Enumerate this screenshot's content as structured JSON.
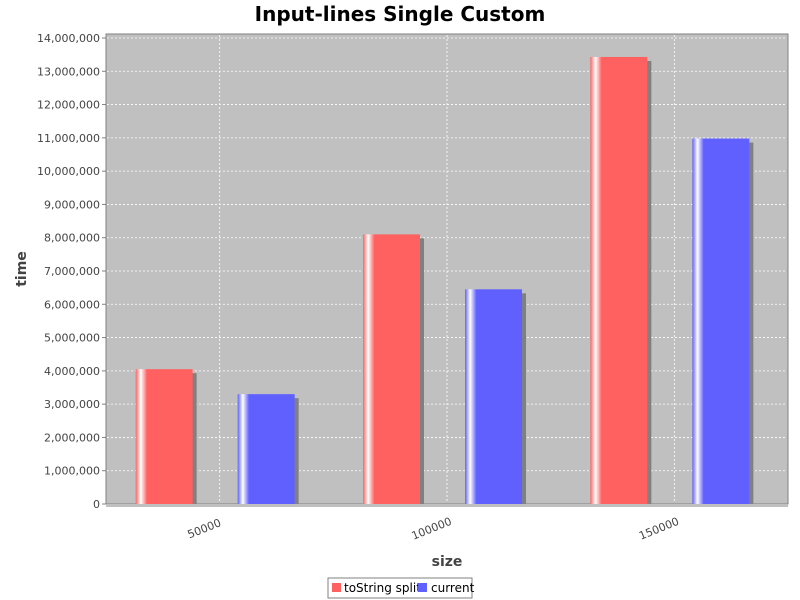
{
  "chart_data": {
    "type": "bar",
    "title": "Input-lines Single Custom",
    "xlabel": "size",
    "ylabel": "time",
    "categories": [
      "50000",
      "100000",
      "150000"
    ],
    "series": [
      {
        "name": "toString split",
        "color": "#ff6060",
        "values": [
          4050000,
          8100000,
          13430000
        ]
      },
      {
        "name": "current",
        "color": "#6060ff",
        "values": [
          3300000,
          6450000,
          10980000
        ]
      }
    ],
    "ylim": [
      0,
      14000000
    ],
    "yticks": [
      0,
      1000000,
      2000000,
      3000000,
      4000000,
      5000000,
      6000000,
      7000000,
      8000000,
      9000000,
      10000000,
      11000000,
      12000000,
      13000000,
      14000000
    ],
    "ytick_labels": [
      "0",
      "1,000,000",
      "2,000,000",
      "3,000,000",
      "4,000,000",
      "5,000,000",
      "6,000,000",
      "7,000,000",
      "8,000,000",
      "9,000,000",
      "10,000,000",
      "11,000,000",
      "12,000,000",
      "13,000,000",
      "14,000,000"
    ],
    "grid": true,
    "plot_background": "#c0c0c0",
    "legend_position": "bottom"
  }
}
